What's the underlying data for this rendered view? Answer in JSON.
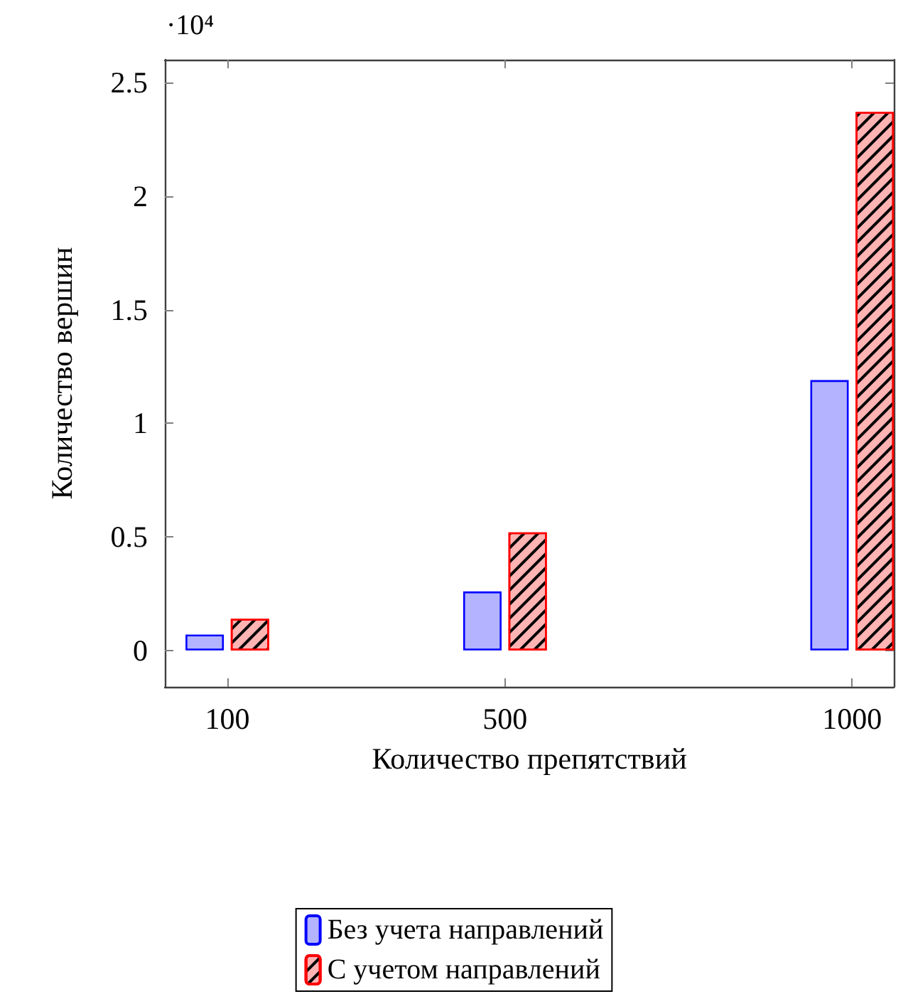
{
  "chart_data": {
    "type": "bar",
    "xlabel": "Количество препятствий",
    "ylabel": "Количество вершин",
    "x": [
      100,
      500,
      1000
    ],
    "series": [
      {
        "name": "Без учета направлений",
        "color": "#b3b3ff",
        "values": [
          0.07,
          0.26,
          1.19
        ]
      },
      {
        "name": "С учетом направлений",
        "color": "#ffb3b3",
        "values": [
          0.14,
          0.52,
          2.37
        ]
      }
    ],
    "xlim": [
      10,
      1060
    ],
    "xticks": [
      100,
      500,
      1000
    ],
    "ylim": [
      -0.16,
      2.6
    ],
    "yticks": [
      0,
      0.5,
      1,
      1.5,
      2,
      2.5
    ],
    "annotations": [
      "·10⁴"
    ],
    "grid": false,
    "legend": "bottom"
  }
}
